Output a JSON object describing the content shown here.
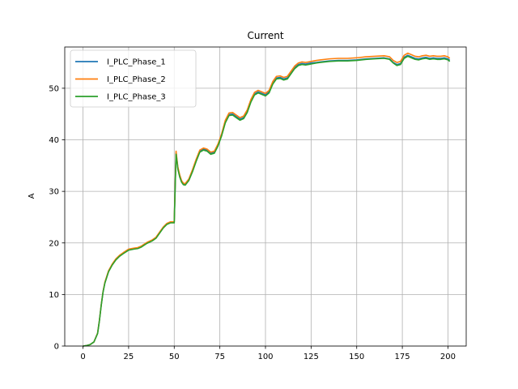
{
  "chart_data": {
    "type": "line",
    "title": "Current",
    "xlabel": "",
    "ylabel": "A",
    "xlim": [
      -10,
      210
    ],
    "ylim": [
      0,
      58
    ],
    "xticks": [
      0,
      25,
      50,
      75,
      100,
      125,
      150,
      175,
      200
    ],
    "yticks": [
      0,
      10,
      20,
      30,
      40,
      50
    ],
    "grid": true,
    "legend_position": "top-left",
    "x": [
      0,
      2,
      4,
      6,
      8,
      9,
      10,
      11,
      12,
      14,
      16,
      18,
      20,
      22,
      25,
      28,
      30,
      32,
      35,
      38,
      40,
      42,
      44,
      46,
      48,
      50,
      51,
      51.5,
      52,
      53,
      54,
      55,
      56,
      58,
      60,
      62,
      64,
      66,
      68,
      70,
      72,
      74,
      76,
      78,
      80,
      82,
      84,
      86,
      88,
      90,
      92,
      94,
      96,
      98,
      100,
      102,
      104,
      106,
      108,
      110,
      112,
      114,
      116,
      118,
      120,
      122,
      125,
      128,
      130,
      135,
      140,
      145,
      150,
      155,
      160,
      165,
      168,
      170,
      172,
      174,
      176,
      178,
      180,
      182,
      184,
      186,
      188,
      190,
      192,
      194,
      196,
      198,
      200,
      201
    ],
    "series": [
      {
        "name": "I_PLC_Phase_1",
        "color": "#1f77b4",
        "values": [
          0,
          0.1,
          0.3,
          0.8,
          2.5,
          5.0,
          8.0,
          10.5,
          12.3,
          14.5,
          15.8,
          16.8,
          17.5,
          18.0,
          18.7,
          18.9,
          19.0,
          19.3,
          20.0,
          20.5,
          21.0,
          22.0,
          23.0,
          23.7,
          24.0,
          24.0,
          37.5,
          36.0,
          34.5,
          33.0,
          32.0,
          31.5,
          31.4,
          32.3,
          34.0,
          36.0,
          37.8,
          38.2,
          38.0,
          37.4,
          37.6,
          39.0,
          41.0,
          43.5,
          44.9,
          45.0,
          44.5,
          44.0,
          44.3,
          45.5,
          47.5,
          48.9,
          49.3,
          49.0,
          48.7,
          49.3,
          51.0,
          52.0,
          52.1,
          51.8,
          52.0,
          53.0,
          54.0,
          54.6,
          54.8,
          54.7,
          54.9,
          55.0,
          55.1,
          55.3,
          55.4,
          55.4,
          55.5,
          55.7,
          55.8,
          55.9,
          55.7,
          55.0,
          54.6,
          54.8,
          56.0,
          56.4,
          56.1,
          55.8,
          55.7,
          55.9,
          56.0,
          55.8,
          55.9,
          55.8,
          55.8,
          55.9,
          55.7,
          55.4
        ]
      },
      {
        "name": "I_PLC_Phase_2",
        "color": "#ff7f0e",
        "values": [
          0,
          0.1,
          0.3,
          0.8,
          2.5,
          5.0,
          8.0,
          10.6,
          12.4,
          14.6,
          15.9,
          16.9,
          17.6,
          18.1,
          18.8,
          19.0,
          19.1,
          19.4,
          20.1,
          20.6,
          21.1,
          22.1,
          23.1,
          23.8,
          24.1,
          24.1,
          37.8,
          36.2,
          34.7,
          33.2,
          32.1,
          31.6,
          31.5,
          32.4,
          34.2,
          36.2,
          38.0,
          38.4,
          38.2,
          37.6,
          37.8,
          39.2,
          41.2,
          43.8,
          45.2,
          45.3,
          44.8,
          44.3,
          44.6,
          45.8,
          47.8,
          49.2,
          49.6,
          49.3,
          49.0,
          49.6,
          51.3,
          52.3,
          52.4,
          52.1,
          52.3,
          53.3,
          54.3,
          54.9,
          55.1,
          55.0,
          55.2,
          55.4,
          55.5,
          55.7,
          55.8,
          55.8,
          55.9,
          56.1,
          56.2,
          56.3,
          56.1,
          55.4,
          55.0,
          55.2,
          56.4,
          56.8,
          56.5,
          56.2,
          56.1,
          56.3,
          56.4,
          56.2,
          56.3,
          56.2,
          56.2,
          56.3,
          56.1,
          55.8
        ]
      },
      {
        "name": "I_PLC_Phase_3",
        "color": "#2ca02c",
        "values": [
          0,
          0.1,
          0.3,
          0.8,
          2.4,
          4.9,
          7.9,
          10.5,
          12.2,
          14.4,
          15.7,
          16.7,
          17.4,
          17.9,
          18.6,
          18.8,
          18.9,
          19.2,
          19.9,
          20.4,
          20.9,
          21.9,
          22.9,
          23.6,
          23.9,
          23.9,
          37.2,
          35.8,
          34.3,
          32.8,
          31.8,
          31.3,
          31.2,
          32.1,
          33.8,
          35.8,
          37.6,
          38.0,
          37.8,
          37.2,
          37.4,
          38.8,
          40.8,
          43.3,
          44.7,
          44.8,
          44.3,
          43.8,
          44.1,
          45.3,
          47.3,
          48.7,
          49.1,
          48.8,
          48.5,
          49.1,
          50.8,
          51.8,
          51.9,
          51.6,
          51.8,
          52.8,
          53.8,
          54.4,
          54.6,
          54.5,
          54.7,
          54.9,
          55.0,
          55.2,
          55.3,
          55.3,
          55.4,
          55.6,
          55.7,
          55.8,
          55.6,
          54.9,
          54.4,
          54.6,
          55.8,
          56.2,
          55.9,
          55.6,
          55.5,
          55.7,
          55.8,
          55.6,
          55.7,
          55.6,
          55.6,
          55.7,
          55.5,
          55.2
        ]
      }
    ]
  }
}
